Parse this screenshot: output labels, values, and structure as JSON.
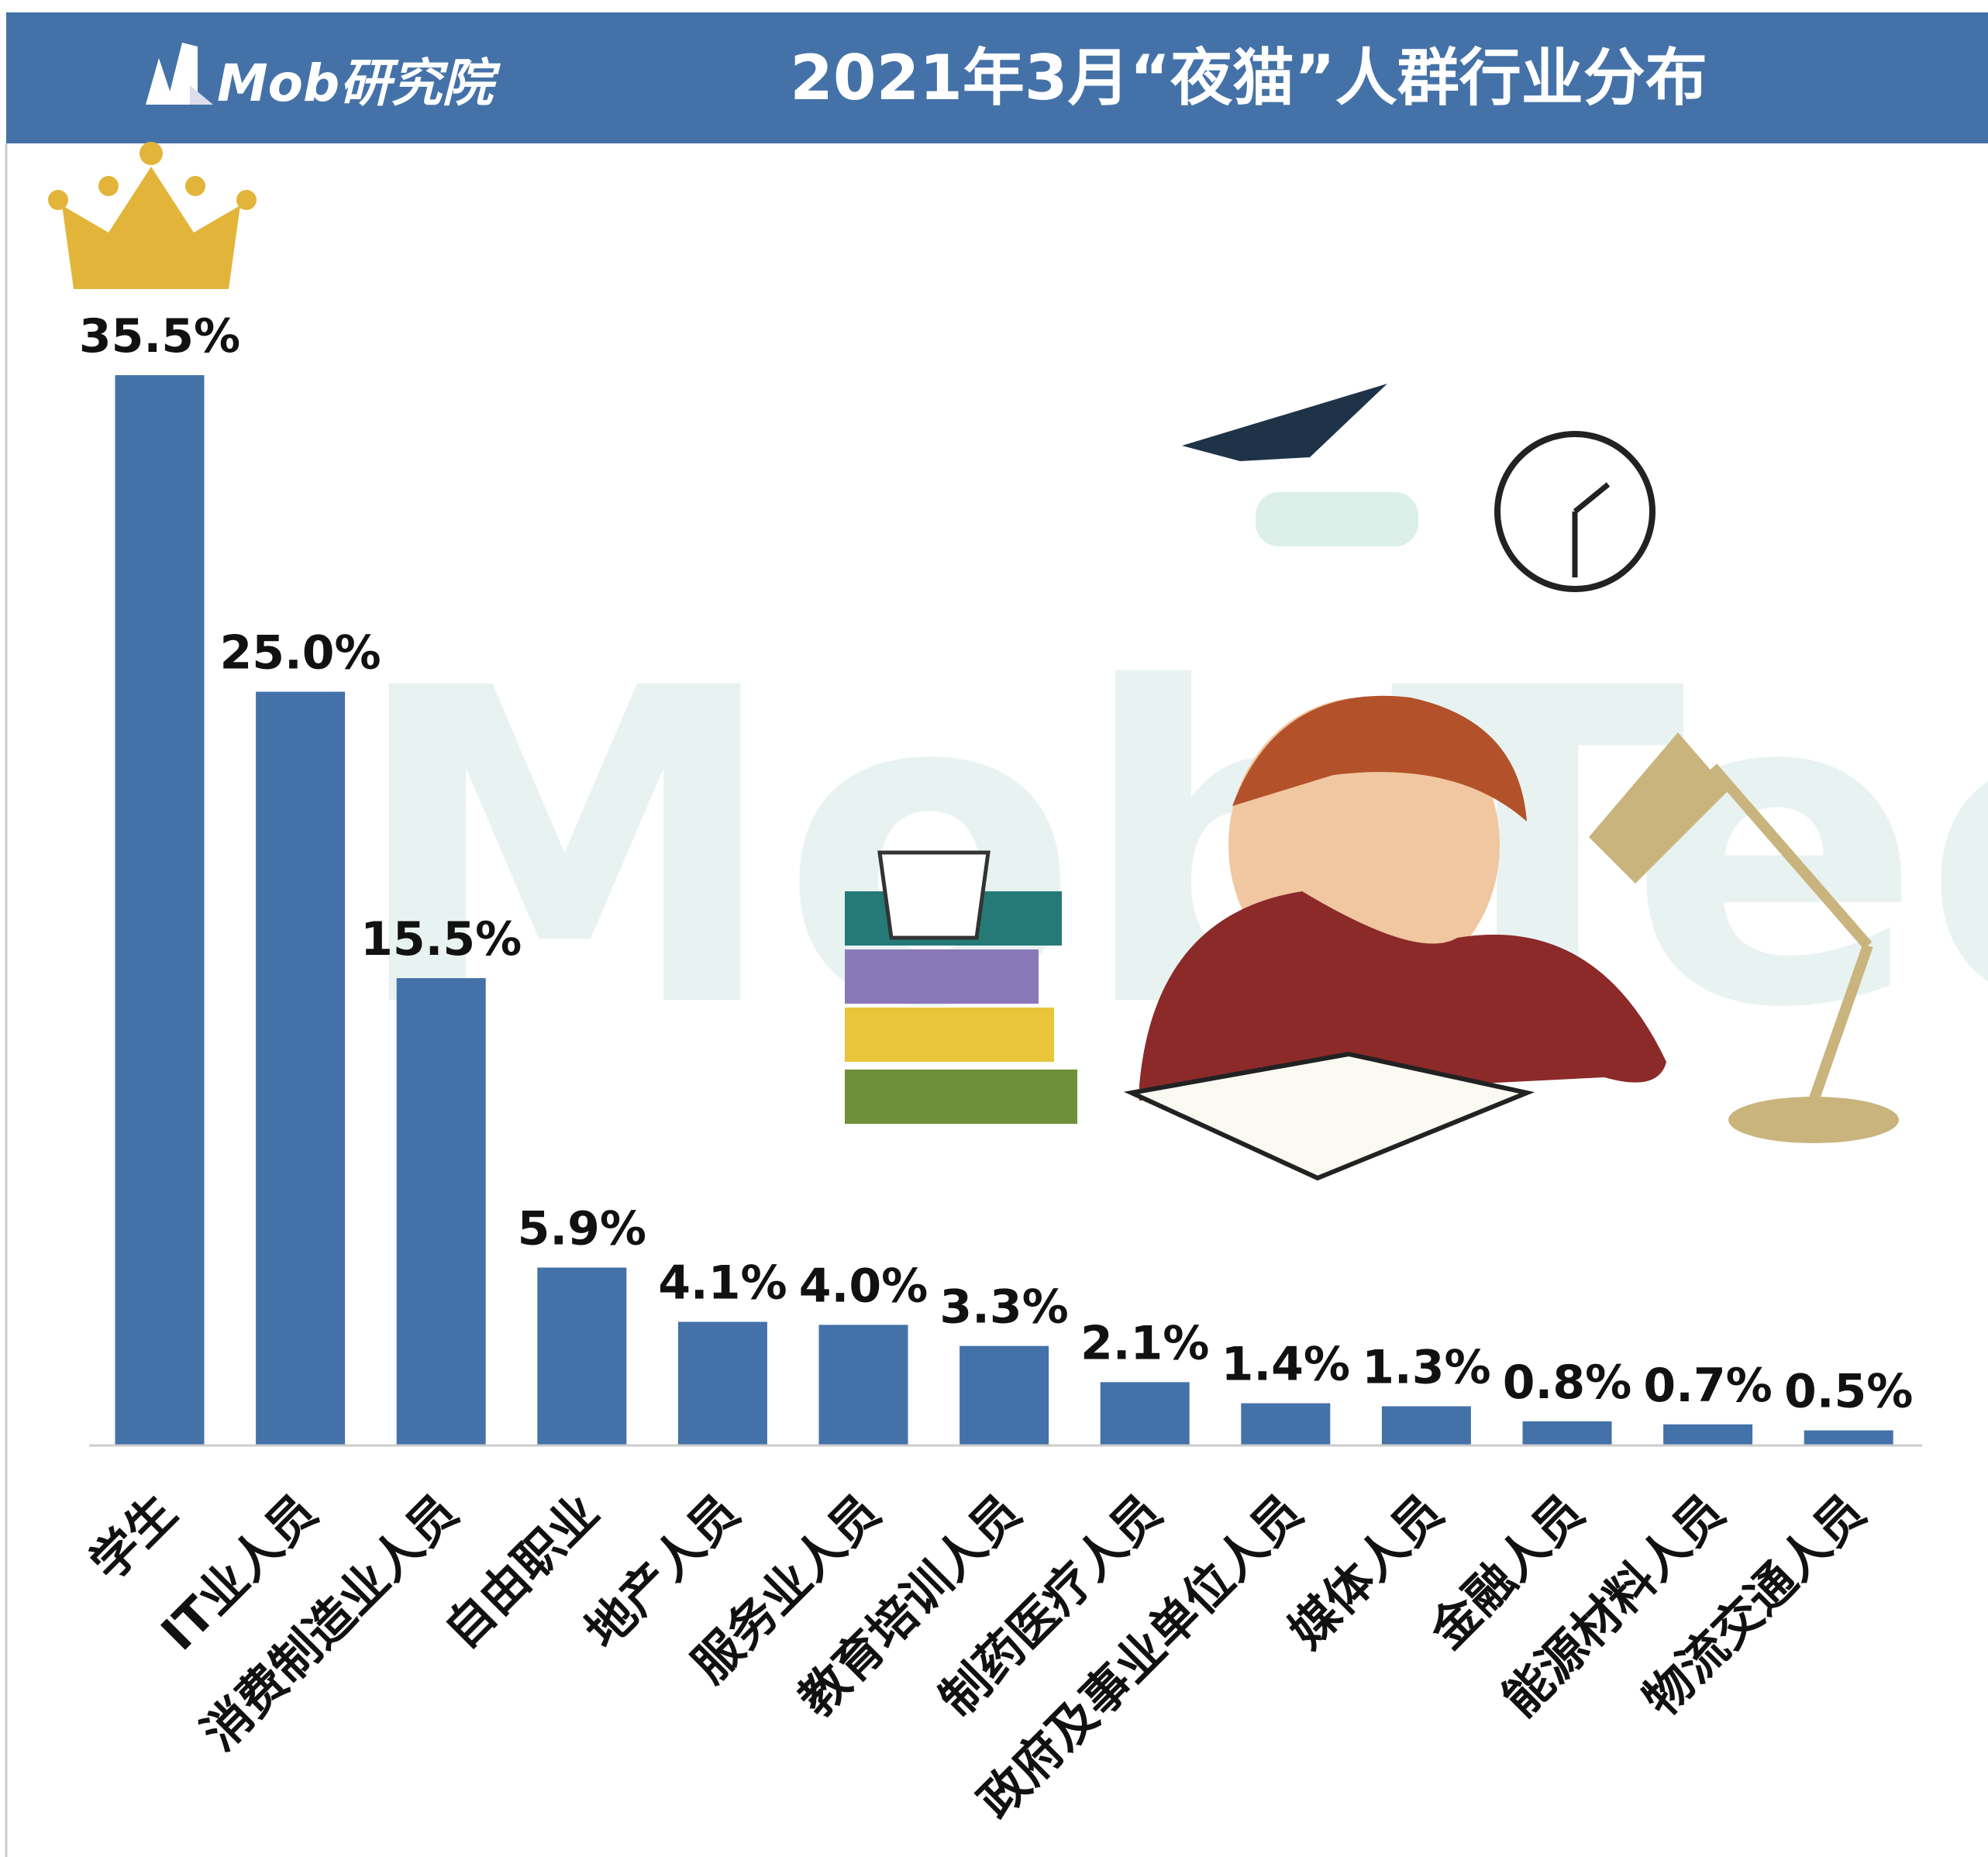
{
  "logo": "Mob研究院",
  "watermark": "MobTech袤博",
  "chart_data": {
    "type": "bar",
    "title": "2021年3月“夜猫”人群行业分布",
    "categories": [
      "学生",
      "IT业人员",
      "消费制造业人员",
      "自由职业",
      "地产人员",
      "服务业人员",
      "教育培训人员",
      "制药医疗人员",
      "政府及事业单位人员",
      "媒体人员",
      "金融人员",
      "能源材料人员",
      "物流交通人员"
    ],
    "values": [
      35.5,
      25.0,
      15.5,
      5.9,
      4.1,
      4.0,
      3.3,
      2.1,
      1.4,
      1.3,
      0.8,
      0.7,
      0.5
    ],
    "value_labels": [
      "35.5%",
      "25.0%",
      "15.5%",
      "5.9%",
      "4.1%",
      "4.0%",
      "3.3%",
      "2.1%",
      "1.4%",
      "1.3%",
      "0.8%",
      "0.7%",
      "0.5%"
    ],
    "color": "#4472a8"
  }
}
